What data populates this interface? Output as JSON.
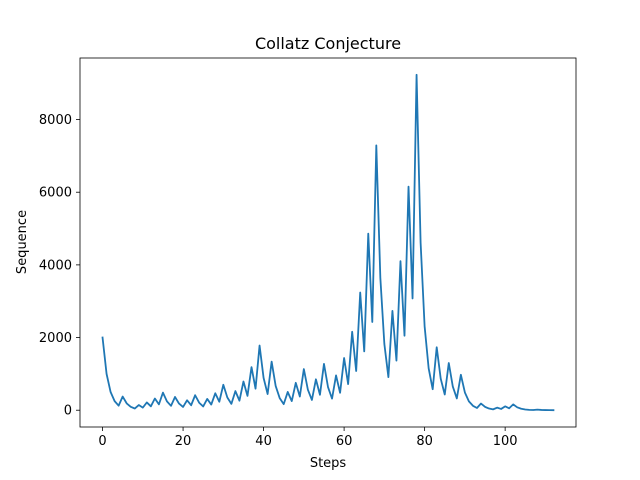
{
  "chart_data": {
    "type": "line",
    "title": "Collatz Conjecture",
    "xlabel": "Steps",
    "ylabel": "Sequence",
    "xlim": [
      -5.6,
      117.6
    ],
    "ylim": [
      -462,
      9694
    ],
    "xticks": [
      0,
      20,
      40,
      60,
      80,
      100
    ],
    "yticks": [
      0,
      2000,
      4000,
      6000,
      8000
    ],
    "grid": false,
    "line_color": "#1f77b4",
    "series": [
      {
        "x": [
          0,
          1,
          2,
          3,
          4,
          5,
          6,
          7,
          8,
          9,
          10,
          11,
          12,
          13,
          14,
          15,
          16,
          17,
          18,
          19,
          20,
          21,
          22,
          23,
          24,
          25,
          26,
          27,
          28,
          29,
          30,
          31,
          32,
          33,
          34,
          35,
          36,
          37,
          38,
          39,
          40,
          41,
          42,
          43,
          44,
          45,
          46,
          47,
          48,
          49,
          50,
          51,
          52,
          53,
          54,
          55,
          56,
          57,
          58,
          59,
          60,
          61,
          62,
          63,
          64,
          65,
          66,
          67,
          68,
          69,
          70,
          71,
          72,
          73,
          74,
          75,
          76,
          77,
          78,
          79,
          80,
          81,
          82,
          83,
          84,
          85,
          86,
          87,
          88,
          89,
          90,
          91,
          92,
          93,
          94,
          95,
          96,
          97,
          98,
          99,
          100,
          101,
          102,
          103,
          104,
          105,
          106,
          107,
          108,
          109,
          110,
          111,
          112
        ],
        "values": [
          2000,
          1000,
          500,
          250,
          125,
          376,
          188,
          94,
          47,
          142,
          71,
          214,
          107,
          322,
          161,
          484,
          242,
          121,
          364,
          182,
          91,
          274,
          137,
          412,
          206,
          103,
          310,
          155,
          466,
          233,
          700,
          350,
          175,
          526,
          263,
          790,
          395,
          1186,
          593,
          1780,
          890,
          445,
          1336,
          668,
          334,
          167,
          502,
          251,
          754,
          377,
          1132,
          566,
          283,
          850,
          425,
          1276,
          638,
          319,
          958,
          479,
          1438,
          719,
          2158,
          1079,
          3238,
          1619,
          4858,
          2429,
          7288,
          3644,
          1822,
          911,
          2734,
          1367,
          4102,
          2051,
          6154,
          3077,
          9232,
          4616,
          2308,
          1154,
          577,
          1732,
          866,
          433,
          1300,
          650,
          325,
          976,
          488,
          244,
          122,
          61,
          184,
          92,
          46,
          23,
          70,
          35,
          106,
          53,
          160,
          80,
          40,
          20,
          10,
          5,
          16,
          8,
          4,
          2,
          1
        ]
      }
    ]
  }
}
